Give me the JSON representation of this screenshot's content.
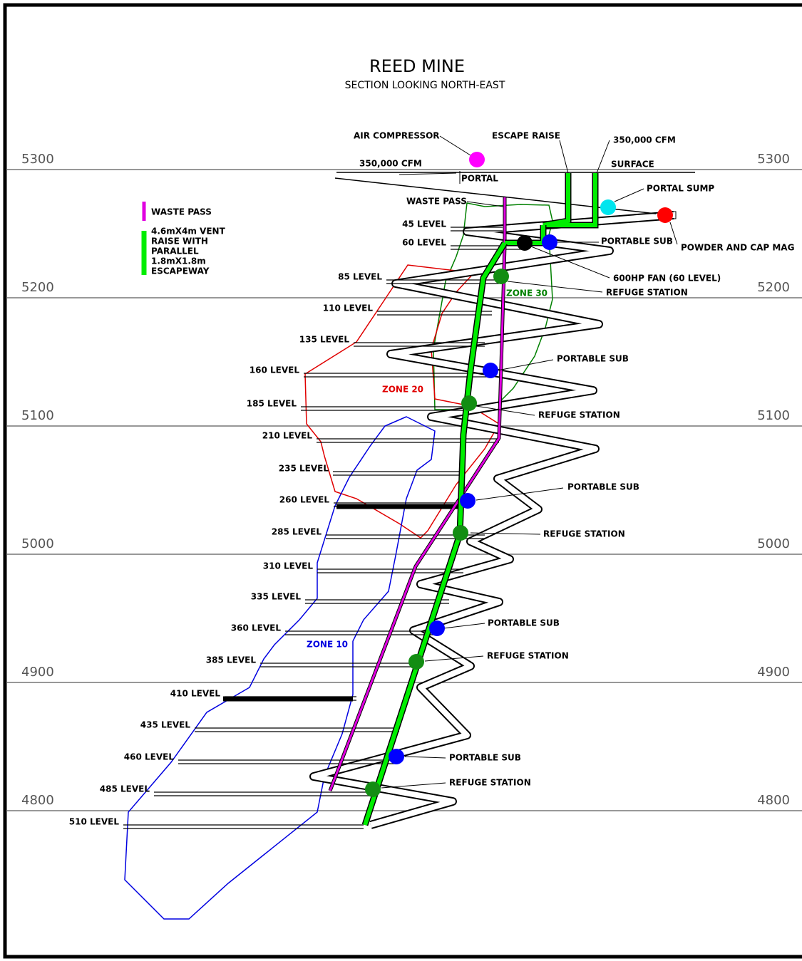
{
  "header": {
    "title": "REED MINE",
    "subtitle": "SECTION LOOKING NORTH-EAST"
  },
  "elevations": [
    "5300",
    "5200",
    "5100",
    "5000",
    "4900",
    "4800"
  ],
  "legend": [
    {
      "lines": [
        "WASTE PASS"
      ]
    },
    {
      "lines": [
        "4.6mX4m VENT",
        "RAISE WITH",
        "PARALLEL",
        "1.8mX1.8m",
        "ESCAPEWAY"
      ]
    }
  ],
  "levels": [
    "45 LEVEL",
    "60 LEVEL",
    "85 LEVEL",
    "110 LEVEL",
    "135 LEVEL",
    "160 LEVEL",
    "185 LEVEL",
    "210 LEVEL",
    "235 LEVEL",
    "260 LEVEL",
    "285 LEVEL",
    "310 LEVEL",
    "335 LEVEL",
    "360 LEVEL",
    "385 LEVEL",
    "410 LEVEL",
    "435 LEVEL",
    "460 LEVEL",
    "485 LEVEL",
    "510 LEVEL"
  ],
  "zones": [
    "ZONE 30",
    "ZONE 20",
    "ZONE 10"
  ],
  "annotations": [
    "AIR COMPRESSOR",
    "ESCAPE RAISE",
    "350,000 CFM",
    "350,000 CFM",
    "SURFACE",
    "PORTAL",
    "WASTE PASS",
    "PORTAL SUMP",
    "PORTABLE SUB",
    "POWDER AND CAP MAG",
    "600HP FAN (60 LEVEL)",
    "REFUGE STATION",
    "PORTABLE SUB",
    "REFUGE STATION",
    "PORTABLE SUB",
    "REFUGE STATION",
    "PORTABLE SUB",
    "REFUGE STATION",
    "PORTABLE SUB",
    "REFUGE STATION"
  ]
}
